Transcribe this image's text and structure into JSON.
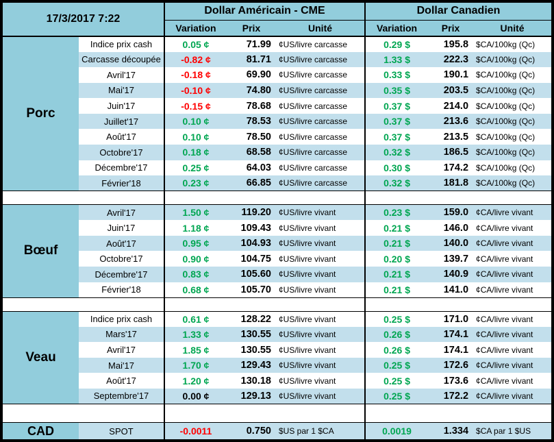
{
  "header": {
    "datetime": "17/3/2017 7:22",
    "us_group": "Dollar Américain - CME",
    "ca_group": "Dollar Canadien",
    "cols": {
      "variation": "Variation",
      "prix": "Prix",
      "unite": "Unité"
    }
  },
  "sections": [
    {
      "label": "Porc",
      "rows": [
        {
          "label": "Indice prix cash",
          "us_var": "0.05 ¢",
          "us_prix": "71.99",
          "us_unit": "¢US/livre carcasse",
          "ca_var": "0.29 $",
          "ca_prix": "195.8",
          "ca_unit": "$CA/100kg (Qc)"
        },
        {
          "label": "Carcasse découpée",
          "us_var": "-0.82 ¢",
          "us_prix": "81.71",
          "us_unit": "¢US/livre carcasse",
          "ca_var": "1.33 $",
          "ca_prix": "222.3",
          "ca_unit": "$CA/100kg (Qc)"
        },
        {
          "label": "Avril'17",
          "us_var": "-0.18 ¢",
          "us_prix": "69.90",
          "us_unit": "¢US/livre carcasse",
          "ca_var": "0.33 $",
          "ca_prix": "190.1",
          "ca_unit": "$CA/100kg (Qc)"
        },
        {
          "label": "Mai'17",
          "us_var": "-0.10 ¢",
          "us_prix": "74.80",
          "us_unit": "¢US/livre carcasse",
          "ca_var": "0.35 $",
          "ca_prix": "203.5",
          "ca_unit": "$CA/100kg (Qc)"
        },
        {
          "label": "Juin'17",
          "us_var": "-0.15 ¢",
          "us_prix": "78.68",
          "us_unit": "¢US/livre carcasse",
          "ca_var": "0.37 $",
          "ca_prix": "214.0",
          "ca_unit": "$CA/100kg (Qc)"
        },
        {
          "label": "Juillet'17",
          "us_var": "0.10 ¢",
          "us_prix": "78.53",
          "us_unit": "¢US/livre carcasse",
          "ca_var": "0.37 $",
          "ca_prix": "213.6",
          "ca_unit": "$CA/100kg (Qc)"
        },
        {
          "label": "Août'17",
          "us_var": "0.10 ¢",
          "us_prix": "78.50",
          "us_unit": "¢US/livre carcasse",
          "ca_var": "0.37 $",
          "ca_prix": "213.5",
          "ca_unit": "$CA/100kg (Qc)"
        },
        {
          "label": "Octobre'17",
          "us_var": "0.18 ¢",
          "us_prix": "68.58",
          "us_unit": "¢US/livre carcasse",
          "ca_var": "0.32 $",
          "ca_prix": "186.5",
          "ca_unit": "$CA/100kg (Qc)"
        },
        {
          "label": "Décembre'17",
          "us_var": "0.25 ¢",
          "us_prix": "64.03",
          "us_unit": "¢US/livre carcasse",
          "ca_var": "0.30 $",
          "ca_prix": "174.2",
          "ca_unit": "$CA/100kg (Qc)"
        },
        {
          "label": "Février'18",
          "us_var": "0.23 ¢",
          "us_prix": "66.85",
          "us_unit": "¢US/livre carcasse",
          "ca_var": "0.32 $",
          "ca_prix": "181.8",
          "ca_unit": "$CA/100kg (Qc)"
        }
      ]
    },
    {
      "label": "Bœuf",
      "rows": [
        {
          "label": "Avril'17",
          "us_var": "1.50 ¢",
          "us_prix": "119.20",
          "us_unit": "¢US/livre vivant",
          "ca_var": "0.23 $",
          "ca_prix": "159.0",
          "ca_unit": "¢CA/livre vivant"
        },
        {
          "label": "Juin'17",
          "us_var": "1.18 ¢",
          "us_prix": "109.43",
          "us_unit": "¢US/livre vivant",
          "ca_var": "0.21 $",
          "ca_prix": "146.0",
          "ca_unit": "¢CA/livre vivant"
        },
        {
          "label": "Août'17",
          "us_var": "0.95 ¢",
          "us_prix": "104.93",
          "us_unit": "¢US/livre vivant",
          "ca_var": "0.21 $",
          "ca_prix": "140.0",
          "ca_unit": "¢CA/livre vivant"
        },
        {
          "label": "Octobre'17",
          "us_var": "0.90 ¢",
          "us_prix": "104.75",
          "us_unit": "¢US/livre vivant",
          "ca_var": "0.20 $",
          "ca_prix": "139.7",
          "ca_unit": "¢CA/livre vivant"
        },
        {
          "label": "Décembre'17",
          "us_var": "0.83 ¢",
          "us_prix": "105.60",
          "us_unit": "¢US/livre vivant",
          "ca_var": "0.21 $",
          "ca_prix": "140.9",
          "ca_unit": "¢CA/livre vivant"
        },
        {
          "label": "Février'18",
          "us_var": "0.68 ¢",
          "us_prix": "105.70",
          "us_unit": "¢US/livre vivant",
          "ca_var": "0.21 $",
          "ca_prix": "141.0",
          "ca_unit": "¢CA/livre vivant"
        }
      ]
    },
    {
      "label": "Veau",
      "rows": [
        {
          "label": "Indice prix cash",
          "us_var": "0.61 ¢",
          "us_prix": "128.22",
          "us_unit": "¢US/livre vivant",
          "ca_var": "0.25 $",
          "ca_prix": "171.0",
          "ca_unit": "¢CA/livre vivant"
        },
        {
          "label": "Mars'17",
          "us_var": "1.33 ¢",
          "us_prix": "130.55",
          "us_unit": "¢US/livre vivant",
          "ca_var": "0.26 $",
          "ca_prix": "174.1",
          "ca_unit": "¢CA/livre vivant"
        },
        {
          "label": "Avril'17",
          "us_var": "1.85 ¢",
          "us_prix": "130.55",
          "us_unit": "¢US/livre vivant",
          "ca_var": "0.26 $",
          "ca_prix": "174.1",
          "ca_unit": "¢CA/livre vivant"
        },
        {
          "label": "Mai'17",
          "us_var": "1.70 ¢",
          "us_prix": "129.43",
          "us_unit": "¢US/livre vivant",
          "ca_var": "0.25 $",
          "ca_prix": "172.6",
          "ca_unit": "¢CA/livre vivant"
        },
        {
          "label": "Août'17",
          "us_var": "1.20 ¢",
          "us_prix": "130.18",
          "us_unit": "¢US/livre vivant",
          "ca_var": "0.25 $",
          "ca_prix": "173.6",
          "ca_unit": "¢CA/livre vivant"
        },
        {
          "label": "Septembre'17",
          "us_var": "0.00 ¢",
          "us_prix": "129.13",
          "us_unit": "¢US/livre vivant",
          "ca_var": "0.25 $",
          "ca_prix": "172.2",
          "ca_unit": "¢CA/livre vivant"
        }
      ]
    }
  ],
  "footer": {
    "section": "CAD",
    "label": "SPOT",
    "us_var": "-0.0011",
    "us_prix": "0.750",
    "us_unit": "$US par 1 $CA",
    "ca_var": "0.0019",
    "ca_prix": "1.334",
    "ca_unit": "$CA par 1 $US"
  },
  "colors": {
    "positive_green": "#00A651",
    "negative_red": "#FF0000",
    "header_blue": "#92CDDC",
    "stripe_blue": "#C2DFEC"
  }
}
